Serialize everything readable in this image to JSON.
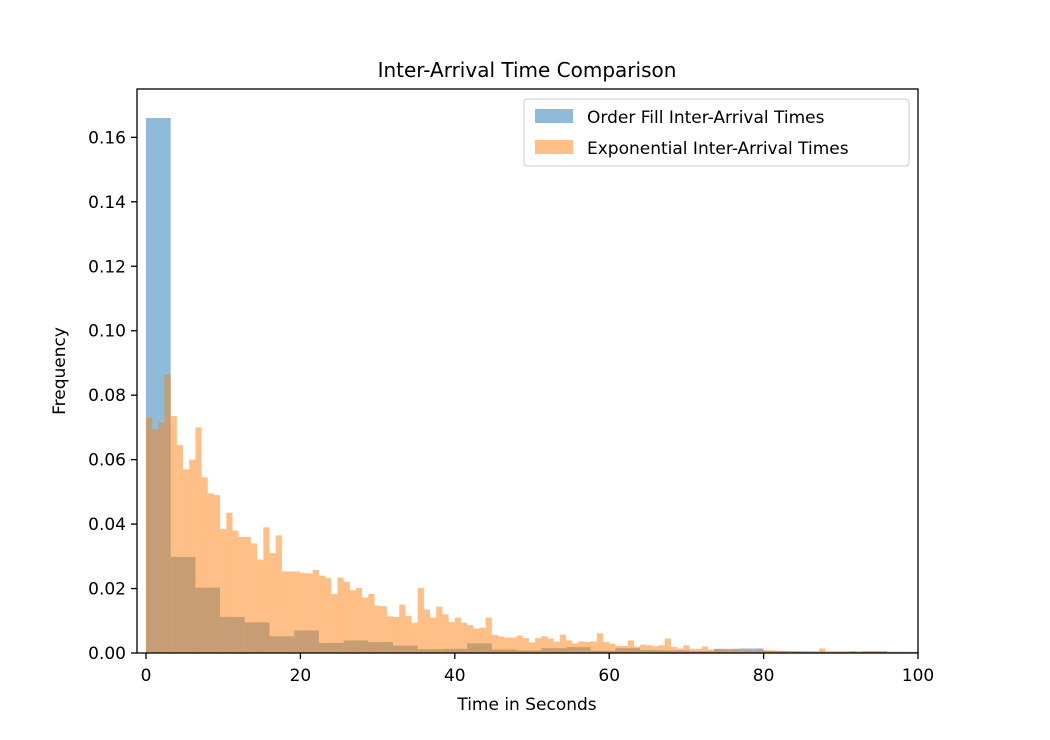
{
  "chart_data": {
    "type": "bar",
    "title": "Inter-Arrival Time Comparison",
    "xlabel": "Time in Seconds",
    "ylabel": "Frequency",
    "xlim": [
      0,
      100
    ],
    "ylim": [
      0,
      0.175
    ],
    "xticks": [
      0,
      20,
      40,
      60,
      80,
      100
    ],
    "yticks": [
      0.0,
      0.02,
      0.04,
      0.06,
      0.08,
      0.1,
      0.12,
      0.14,
      0.16
    ],
    "grid": false,
    "legend_position": "top-right",
    "series": [
      {
        "name": "Order Fill Inter-Arrival Times",
        "color": "#1f77b4",
        "alpha": 0.5,
        "bin_width": 3.2,
        "bin_start": 0,
        "values": [
          0.166,
          0.0298,
          0.0203,
          0.0112,
          0.0095,
          0.0052,
          0.007,
          0.0031,
          0.0039,
          0.0034,
          0.0023,
          0.0012,
          0.0013,
          0.003,
          0.0011,
          0.0008,
          0.0015,
          0.0018,
          0.0007,
          0.0015,
          0.0009,
          0.0008,
          0.0006,
          0.0013,
          0.0014,
          0.0006,
          0.0005,
          0.0005,
          0.0005,
          0.0006,
          0.0004,
          0.0004
        ]
      },
      {
        "name": "Exponential Inter-Arrival Times",
        "color": "#ff7f0e",
        "alpha": 0.5,
        "bin_width": 0.8,
        "bin_start": 0,
        "values": [
          0.073,
          0.0695,
          0.0715,
          0.0864,
          0.0735,
          0.0645,
          0.057,
          0.06,
          0.07,
          0.0545,
          0.0495,
          0.049,
          0.0385,
          0.0435,
          0.038,
          0.036,
          0.036,
          0.034,
          0.029,
          0.039,
          0.031,
          0.0365,
          0.0253,
          0.0253,
          0.0253,
          0.0248,
          0.0247,
          0.0258,
          0.024,
          0.0233,
          0.0183,
          0.0234,
          0.0221,
          0.0195,
          0.0202,
          0.0172,
          0.0183,
          0.0147,
          0.0145,
          0.0114,
          0.0112,
          0.015,
          0.0115,
          0.0094,
          0.0202,
          0.0135,
          0.011,
          0.0144,
          0.012,
          0.0096,
          0.011,
          0.0094,
          0.0086,
          0.0076,
          0.0079,
          0.011,
          0.0056,
          0.0051,
          0.0048,
          0.0048,
          0.0054,
          0.0046,
          0.0033,
          0.0046,
          0.0052,
          0.0045,
          0.0035,
          0.0057,
          0.0039,
          0.003,
          0.0036,
          0.0034,
          0.0036,
          0.0061,
          0.0034,
          0.0029,
          0.0022,
          0.0022,
          0.0039,
          0.002,
          0.0026,
          0.0024,
          0.0021,
          0.0024,
          0.0045,
          0.0019,
          0.0014,
          0.0024,
          0.0013,
          0.0013,
          0.002,
          0.0011,
          0.0012,
          0.0011,
          0.0009,
          0.0013,
          0.0008,
          0.0009,
          0.0007,
          0.0011,
          0.0009,
          0.0008,
          0.0007,
          0.0006,
          0.0006,
          0.0006,
          0.0005,
          0.0005,
          0.0005,
          0.0014,
          0.0004,
          0.0004,
          0.0004,
          0.0004,
          0.0006,
          0.0003,
          0.0003,
          0.0003,
          0.0003,
          0.0003,
          0.0003,
          0.0003,
          0.0002,
          0.0002,
          0.0002
        ]
      }
    ]
  }
}
